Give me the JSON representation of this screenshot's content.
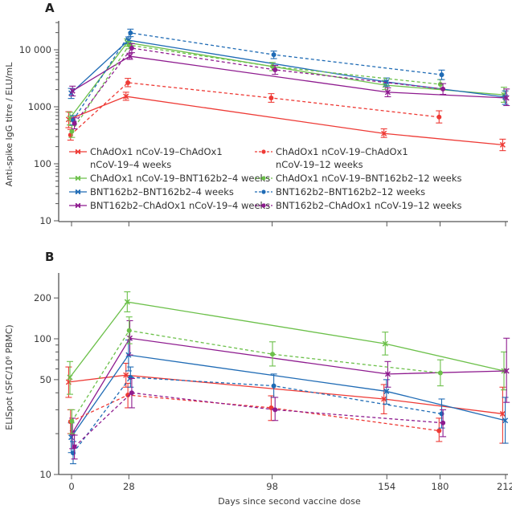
{
  "chart_data": [
    {
      "panel": "A",
      "type": "line",
      "yscale": "log",
      "title": "",
      "xlabel": "",
      "ylabel": "Anti-spike IgG titre / ELU/mL",
      "ylim": [
        10,
        30000
      ],
      "yticks": [
        10,
        100,
        1000,
        10000
      ],
      "ytick_labels": [
        "10",
        "100",
        "1000",
        "10 000"
      ],
      "xlim": [
        -5,
        214
      ],
      "xticks": [
        0,
        28,
        98,
        154,
        180,
        212
      ],
      "legend_position": "bottom-center",
      "series": [
        {
          "name": "ChAdOx1 nCoV-19–ChAdOx1 nCoV-19–4 weeks",
          "legend_lines": [
            "ChAdOx1 nCoV-19–ChAdOx1",
            "nCoV-19–4 weeks"
          ],
          "color": "#ee3a35",
          "dashed": false,
          "marker": "x",
          "x": [
            0,
            28,
            154,
            212
          ],
          "values": [
            600,
            1520,
            340,
            215
          ],
          "err_low": [
            430,
            1300,
            290,
            170
          ],
          "err_high": [
            820,
            1800,
            410,
            270
          ]
        },
        {
          "name": "ChAdOx1 nCoV-19–BNT162b2–4 weeks",
          "legend_lines": [
            "ChAdOx1 nCoV-19–BNT162b2–4 weeks"
          ],
          "color": "#6cc04a",
          "dashed": false,
          "marker": "x",
          "x": [
            0,
            28,
            154,
            212
          ],
          "values": [
            630,
            13400,
            2400,
            1620
          ],
          "err_low": [
            480,
            11500,
            2000,
            1200
          ],
          "err_high": [
            800,
            15500,
            2900,
            2200
          ]
        },
        {
          "name": "BNT162b2–BNT162b2–4 weeks",
          "legend_lines": [
            "BNT162b2–BNT162b2–4 weeks"
          ],
          "color": "#1f6bb5",
          "dashed": false,
          "marker": "x",
          "x": [
            0,
            28,
            154,
            212
          ],
          "values": [
            1740,
            14700,
            2730,
            1480
          ],
          "err_low": [
            1400,
            12800,
            2300,
            1100
          ],
          "err_high": [
            2100,
            16800,
            3200,
            1900
          ]
        },
        {
          "name": "BNT162b2–ChAdOx1 nCoV-19–4 weeks",
          "legend_lines": [
            "BNT162b2–ChAdOx1 nCoV-19–4 weeks"
          ],
          "color": "#8e1b8f",
          "dashed": false,
          "marker": "x",
          "x": [
            0,
            28,
            154,
            212
          ],
          "values": [
            1900,
            7700,
            1800,
            1430
          ],
          "err_low": [
            1550,
            6800,
            1500,
            1050
          ],
          "err_high": [
            2300,
            8700,
            2150,
            2050
          ]
        },
        {
          "name": "ChAdOx1 nCoV-19–ChAdOx1 nCoV-19–12 weeks",
          "legend_lines": [
            "ChAdOx1 nCoV-19–ChAdOx1",
            "nCoV-19–12 weeks"
          ],
          "color": "#ee3a35",
          "dashed": true,
          "marker": "dot",
          "x": [
            0,
            28,
            98,
            180
          ],
          "values": [
            320,
            2650,
            1430,
            660
          ],
          "err_low": [
            260,
            2250,
            1200,
            520
          ],
          "err_high": [
            400,
            3150,
            1700,
            850
          ]
        },
        {
          "name": "ChAdOx1 nCoV-19–BNT162b2–12 weeks",
          "legend_lines": [
            "ChAdOx1 nCoV-19–BNT162b2–12 weeks"
          ],
          "color": "#6cc04a",
          "dashed": true,
          "marker": "dot",
          "x": [
            0,
            28,
            98,
            180
          ],
          "values": [
            370,
            12100,
            5100,
            2480
          ],
          "err_low": [
            290,
            10400,
            4300,
            2050
          ],
          "err_high": [
            470,
            14000,
            6000,
            3000
          ]
        },
        {
          "name": "BNT162b2–BNT162b2–12 weeks",
          "legend_lines": [
            "BNT162b2–BNT162b2–12 weeks"
          ],
          "color": "#1f6bb5",
          "dashed": true,
          "marker": "dot",
          "x": [
            0,
            28,
            98,
            180
          ],
          "values": [
            580,
            19800,
            8200,
            3650
          ],
          "err_low": [
            480,
            17000,
            7000,
            3000
          ],
          "err_high": [
            700,
            23000,
            9500,
            4400
          ]
        },
        {
          "name": "BNT162b2–ChAdOx1 nCoV-19–12 weeks",
          "legend_lines": [
            "BNT162b2–ChAdOx1 nCoV-19–12 weeks"
          ],
          "color": "#8e1b8f",
          "dashed": true,
          "marker": "dot",
          "x": [
            0,
            28,
            98,
            180
          ],
          "values": [
            510,
            10700,
            4450,
            2050
          ],
          "err_low": [
            410,
            8900,
            3700,
            1650
          ],
          "err_high": [
            640,
            12800,
            5300,
            2550
          ]
        }
      ]
    },
    {
      "panel": "B",
      "type": "line",
      "yscale": "log",
      "title": "",
      "xlabel": "Days since second vaccine dose",
      "ylabel": "ELISpot (SFC/10⁶ PBMC)",
      "ylim": [
        10,
        270
      ],
      "yticks": [
        10,
        50,
        100,
        200
      ],
      "ytick_labels": [
        "10",
        "50",
        "100",
        "200"
      ],
      "xlim": [
        -5,
        214
      ],
      "xticks": [
        0,
        28,
        98,
        154,
        180,
        212
      ],
      "series": [
        {
          "name": "ChAdOx1 nCoV-19–ChAdOx1 nCoV-19–4 weeks",
          "color": "#ee3a35",
          "dashed": false,
          "marker": "x",
          "x": [
            0,
            28,
            154,
            212
          ],
          "values": [
            48,
            54,
            36,
            28
          ],
          "err_low": [
            37,
            44,
            28,
            17
          ],
          "err_high": [
            62,
            66,
            46,
            44
          ]
        },
        {
          "name": "ChAdOx1 nCoV-19–BNT162b2–4 weeks",
          "color": "#6cc04a",
          "dashed": false,
          "marker": "x",
          "x": [
            0,
            28,
            154,
            212
          ],
          "values": [
            52,
            187,
            92,
            58
          ],
          "err_low": [
            39,
            158,
            76,
            42
          ],
          "err_high": [
            68,
            222,
            112,
            80
          ]
        },
        {
          "name": "BNT162b2–BNT162b2–4 weeks",
          "color": "#1f6bb5",
          "dashed": false,
          "marker": "x",
          "x": [
            0,
            28,
            154,
            212
          ],
          "values": [
            18.8,
            76,
            41,
            25
          ],
          "err_low": [
            14.5,
            58,
            33,
            17
          ],
          "err_high": [
            24,
            98,
            50,
            37
          ]
        },
        {
          "name": "BNT162b2–ChAdOx1 nCoV-19–4 weeks",
          "color": "#8e1b8f",
          "dashed": false,
          "marker": "x",
          "x": [
            0,
            28,
            154,
            212
          ],
          "values": [
            20.3,
            101,
            55,
            58
          ],
          "err_low": [
            15.5,
            76,
            44,
            34
          ],
          "err_high": [
            26,
            136,
            68,
            101
          ]
        },
        {
          "name": "ChAdOx1 nCoV-19–ChAdOx1 nCoV-19–12 weeks",
          "color": "#ee3a35",
          "dashed": true,
          "marker": "dot",
          "x": [
            0,
            28,
            98,
            180
          ],
          "values": [
            24.5,
            38.5,
            31,
            21
          ],
          "err_low": [
            20,
            31,
            25,
            17.5
          ],
          "err_high": [
            30,
            47,
            38,
            26
          ]
        },
        {
          "name": "ChAdOx1 nCoV-19–BNT162b2–12 weeks",
          "color": "#6cc04a",
          "dashed": true,
          "marker": "dot",
          "x": [
            0,
            28,
            98,
            180
          ],
          "values": [
            24.6,
            115,
            77,
            56
          ],
          "err_low": [
            20,
            92,
            63,
            45
          ],
          "err_high": [
            30,
            145,
            95,
            70
          ]
        },
        {
          "name": "BNT162b2–BNT162b2–12 weeks",
          "color": "#1f6bb5",
          "dashed": true,
          "marker": "dot",
          "x": [
            0,
            28,
            98,
            180
          ],
          "values": [
            14.4,
            52,
            45,
            28
          ],
          "err_low": [
            12,
            44,
            37,
            22
          ],
          "err_high": [
            17.5,
            62,
            55,
            36
          ]
        },
        {
          "name": "BNT162b2–ChAdOx1 nCoV-19–12 weeks",
          "color": "#8e1b8f",
          "dashed": true,
          "marker": "dot",
          "x": [
            0,
            28,
            98,
            180
          ],
          "values": [
            16,
            40,
            30,
            24
          ],
          "err_low": [
            13,
            31,
            25,
            19
          ],
          "err_high": [
            19.5,
            51,
            37,
            30
          ]
        }
      ]
    }
  ],
  "shared_xlabel": "Days since second vaccine dose"
}
